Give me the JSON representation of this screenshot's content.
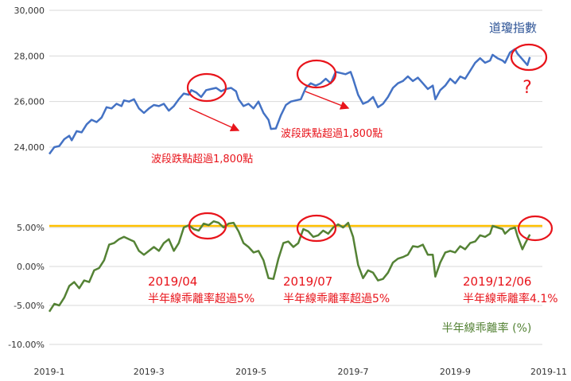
{
  "chart_data": [
    {
      "type": "line",
      "title": "",
      "series": [
        {
          "name": "道瓊指數",
          "color": "#4472c4",
          "points": [
            [
              0,
              23700
            ],
            [
              2,
              24000
            ],
            [
              4,
              24050
            ],
            [
              6,
              24350
            ],
            [
              8,
              24500
            ],
            [
              9,
              24300
            ],
            [
              11,
              24700
            ],
            [
              13,
              24650
            ],
            [
              15,
              25000
            ],
            [
              17,
              25200
            ],
            [
              19,
              25100
            ],
            [
              21,
              25300
            ],
            [
              23,
              25750
            ],
            [
              25,
              25700
            ],
            [
              27,
              25900
            ],
            [
              29,
              25800
            ],
            [
              30,
              26050
            ],
            [
              32,
              26000
            ],
            [
              34,
              26100
            ],
            [
              36,
              25700
            ],
            [
              38,
              25500
            ],
            [
              40,
              25700
            ],
            [
              42,
              25850
            ],
            [
              44,
              25800
            ],
            [
              46,
              25900
            ],
            [
              48,
              25600
            ],
            [
              50,
              25800
            ],
            [
              52,
              26100
            ],
            [
              54,
              26350
            ],
            [
              56,
              26300
            ],
            [
              57,
              26500
            ],
            [
              59,
              26400
            ],
            [
              61,
              26200
            ],
            [
              63,
              26500
            ],
            [
              65,
              26550
            ],
            [
              67,
              26600
            ],
            [
              69,
              26450
            ],
            [
              71,
              26550
            ],
            [
              73,
              26600
            ],
            [
              75,
              26450
            ],
            [
              76,
              26100
            ],
            [
              78,
              25800
            ],
            [
              80,
              25900
            ],
            [
              82,
              25700
            ],
            [
              84,
              26000
            ],
            [
              86,
              25500
            ],
            [
              88,
              25200
            ],
            [
              89,
              24800
            ],
            [
              91,
              24820
            ],
            [
              93,
              25400
            ],
            [
              95,
              25850
            ],
            [
              97,
              26000
            ],
            [
              99,
              26050
            ],
            [
              101,
              26100
            ],
            [
              103,
              26600
            ],
            [
              105,
              26800
            ],
            [
              107,
              26700
            ],
            [
              109,
              26800
            ],
            [
              111,
              27000
            ],
            [
              113,
              26800
            ],
            [
              115,
              27300
            ],
            [
              117,
              27250
            ],
            [
              119,
              27200
            ],
            [
              121,
              27300
            ],
            [
              122,
              27000
            ],
            [
              124,
              26300
            ],
            [
              126,
              25900
            ],
            [
              128,
              26000
            ],
            [
              130,
              26200
            ],
            [
              132,
              25750
            ],
            [
              134,
              25900
            ],
            [
              136,
              26200
            ],
            [
              138,
              26600
            ],
            [
              140,
              26800
            ],
            [
              142,
              26900
            ],
            [
              144,
              27100
            ],
            [
              146,
              26900
            ],
            [
              148,
              27050
            ],
            [
              150,
              26800
            ],
            [
              152,
              26550
            ],
            [
              154,
              26700
            ],
            [
              155,
              26100
            ],
            [
              157,
              26500
            ],
            [
              159,
              26700
            ],
            [
              161,
              27000
            ],
            [
              163,
              26800
            ],
            [
              165,
              27100
            ],
            [
              167,
              27000
            ],
            [
              169,
              27350
            ],
            [
              171,
              27700
            ],
            [
              173,
              27900
            ],
            [
              175,
              27700
            ],
            [
              177,
              27800
            ],
            [
              178,
              28050
            ],
            [
              180,
              27900
            ],
            [
              182,
              27800
            ],
            [
              183,
              27700
            ],
            [
              185,
              28150
            ],
            [
              187,
              28300
            ],
            [
              188,
              28100
            ],
            [
              190,
              27850
            ],
            [
              192,
              27600
            ],
            [
              193,
              27950
            ]
          ]
        }
      ],
      "ylim": [
        24000,
        30000
      ],
      "yticks": [
        "24,000",
        "26,000",
        "28,000",
        "30,000"
      ],
      "yticks_values": [
        24000,
        26000,
        28000,
        30000
      ],
      "legend": "top-right",
      "grid": true,
      "reference_line": null
    },
    {
      "type": "line",
      "title": "",
      "series": [
        {
          "name": "半年線乖離率 (%)",
          "color": "#548235",
          "points": [
            [
              0,
              -5.8
            ],
            [
              2,
              -4.8
            ],
            [
              4,
              -5.0
            ],
            [
              6,
              -4.0
            ],
            [
              8,
              -2.5
            ],
            [
              10,
              -2.0
            ],
            [
              12,
              -2.8
            ],
            [
              14,
              -1.8
            ],
            [
              16,
              -2.0
            ],
            [
              18,
              -0.5
            ],
            [
              20,
              -0.2
            ],
            [
              22,
              0.8
            ],
            [
              24,
              2.8
            ],
            [
              26,
              3.0
            ],
            [
              28,
              3.5
            ],
            [
              30,
              3.8
            ],
            [
              32,
              3.5
            ],
            [
              34,
              3.2
            ],
            [
              36,
              2.0
            ],
            [
              38,
              1.5
            ],
            [
              40,
              2.0
            ],
            [
              42,
              2.5
            ],
            [
              44,
              2.0
            ],
            [
              46,
              3.0
            ],
            [
              48,
              3.5
            ],
            [
              50,
              2.0
            ],
            [
              52,
              3.0
            ],
            [
              54,
              5.0
            ],
            [
              56,
              5.3
            ],
            [
              58,
              4.8
            ],
            [
              60,
              4.6
            ],
            [
              62,
              5.5
            ],
            [
              64,
              5.3
            ],
            [
              66,
              5.8
            ],
            [
              68,
              5.6
            ],
            [
              70,
              5.0
            ],
            [
              72,
              5.5
            ],
            [
              74,
              5.6
            ],
            [
              76,
              4.5
            ],
            [
              78,
              3.0
            ],
            [
              80,
              2.5
            ],
            [
              82,
              1.8
            ],
            [
              84,
              2.0
            ],
            [
              86,
              0.8
            ],
            [
              88,
              -1.5
            ],
            [
              90,
              -1.6
            ],
            [
              92,
              1.0
            ],
            [
              94,
              3.0
            ],
            [
              96,
              3.2
            ],
            [
              98,
              2.5
            ],
            [
              100,
              3.0
            ],
            [
              102,
              4.8
            ],
            [
              104,
              4.5
            ],
            [
              106,
              3.8
            ],
            [
              108,
              4.0
            ],
            [
              110,
              4.6
            ],
            [
              112,
              4.2
            ],
            [
              114,
              5.0
            ],
            [
              116,
              5.4
            ],
            [
              118,
              5.0
            ],
            [
              120,
              5.6
            ],
            [
              122,
              3.8
            ],
            [
              124,
              0.2
            ],
            [
              126,
              -1.5
            ],
            [
              128,
              -0.5
            ],
            [
              130,
              -0.8
            ],
            [
              132,
              -1.8
            ],
            [
              134,
              -1.6
            ],
            [
              136,
              -0.8
            ],
            [
              138,
              0.5
            ],
            [
              140,
              1.0
            ],
            [
              142,
              1.2
            ],
            [
              144,
              1.5
            ],
            [
              146,
              2.6
            ],
            [
              148,
              2.5
            ],
            [
              150,
              2.8
            ],
            [
              152,
              1.5
            ],
            [
              154,
              1.5
            ],
            [
              155,
              -1.3
            ],
            [
              157,
              0.5
            ],
            [
              159,
              1.8
            ],
            [
              161,
              2.0
            ],
            [
              163,
              1.8
            ],
            [
              165,
              2.6
            ],
            [
              167,
              2.2
            ],
            [
              169,
              3.0
            ],
            [
              171,
              3.2
            ],
            [
              173,
              4.0
            ],
            [
              175,
              3.8
            ],
            [
              177,
              4.2
            ],
            [
              178,
              5.2
            ],
            [
              180,
              5.0
            ],
            [
              182,
              4.8
            ],
            [
              183,
              4.2
            ],
            [
              185,
              4.8
            ],
            [
              187,
              5.0
            ],
            [
              188,
              3.9
            ],
            [
              190,
              2.2
            ],
            [
              191,
              2.9
            ],
            [
              193,
              4.1
            ]
          ]
        }
      ],
      "ylim": [
        -10,
        5
      ],
      "yticks": [
        "-10.00%",
        "-5.00%",
        "0.00%",
        "5.00%"
      ],
      "yticks_values": [
        -10,
        -5,
        0,
        5
      ],
      "legend": "bottom-right",
      "grid": true,
      "reference_line": {
        "value": 5.2,
        "color": "#ffc000"
      }
    }
  ],
  "x_axis": {
    "range": [
      0,
      198
    ],
    "ticks": [
      {
        "label": "2019-1",
        "value": 0
      },
      {
        "label": "2019-3",
        "value": 40
      },
      {
        "label": "2019-5",
        "value": 81
      },
      {
        "label": "2019-7",
        "value": 122
      },
      {
        "label": "2019-9",
        "value": 163
      },
      {
        "label": "2019-11",
        "value": 203
      }
    ]
  },
  "annotations": {
    "dow_drop_1": "波段跌點超過1,800點",
    "dow_drop_2": "波段跌點超過1,800點",
    "question_mark": "?",
    "bias_apr_date": "2019/04",
    "bias_apr_text": "半年線乖離率超過5%",
    "bias_jul_date": "2019/07",
    "bias_jul_text": "半年線乖離率超過5%",
    "bias_dec_date": "2019/12/06",
    "bias_dec_text": "半年線乖離率4.1%"
  },
  "colors": {
    "annotation_red": "#e8141b",
    "dow_blue": "#4472c4",
    "bias_green": "#548235",
    "reference_gold": "#ffc000"
  }
}
